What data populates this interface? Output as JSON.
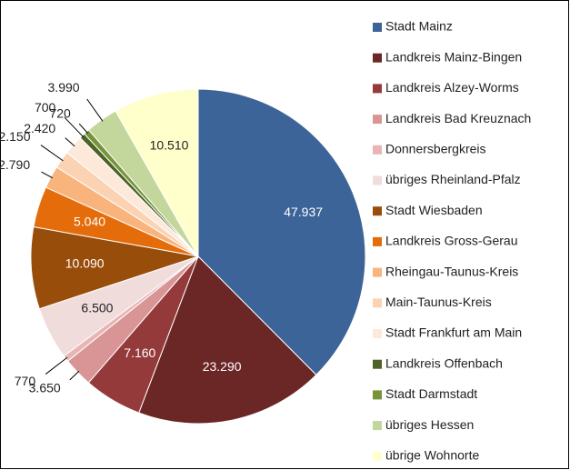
{
  "chart_data": {
    "type": "pie",
    "categories": [
      "Stadt Mainz",
      "Landkreis Mainz-Bingen",
      "Landkreis Alzey-Worms",
      "Landkreis Bad Kreuznach",
      "Donnersbergkreis",
      "übriges Rheinland-Pfalz",
      "Stadt Wiesbaden",
      "Landkreis Gross-Gerau",
      "Rheingau-Taunus-Kreis",
      "Main-Taunus-Kreis",
      "Stadt Frankfurt am Main",
      "Landkreis Offenbach",
      "Stadt Darmstadt",
      "übriges Hessen",
      "übrige Wohnorte"
    ],
    "values": [
      47937,
      23290,
      7160,
      3650,
      770,
      6500,
      10090,
      5040,
      2790,
      2150,
      2420,
      700,
      720,
      3990,
      10510
    ],
    "value_labels": [
      "47.937",
      "23.290",
      "7.160",
      "3.650",
      "770",
      "6.500",
      "10.090",
      "5.040",
      "2.790",
      "2.150",
      "2.420",
      "700",
      "720",
      "3.990",
      "10.510"
    ],
    "colors": [
      "#3c6498",
      "#6b2626",
      "#953a3a",
      "#d99595",
      "#e8b4b4",
      "#f1dcdc",
      "#994d0b",
      "#e46c0a",
      "#f9b47d",
      "#fbd3b2",
      "#fde9d9",
      "#4f6228",
      "#77933c",
      "#c3d69b",
      "#ffffcc"
    ],
    "legend": "right"
  }
}
